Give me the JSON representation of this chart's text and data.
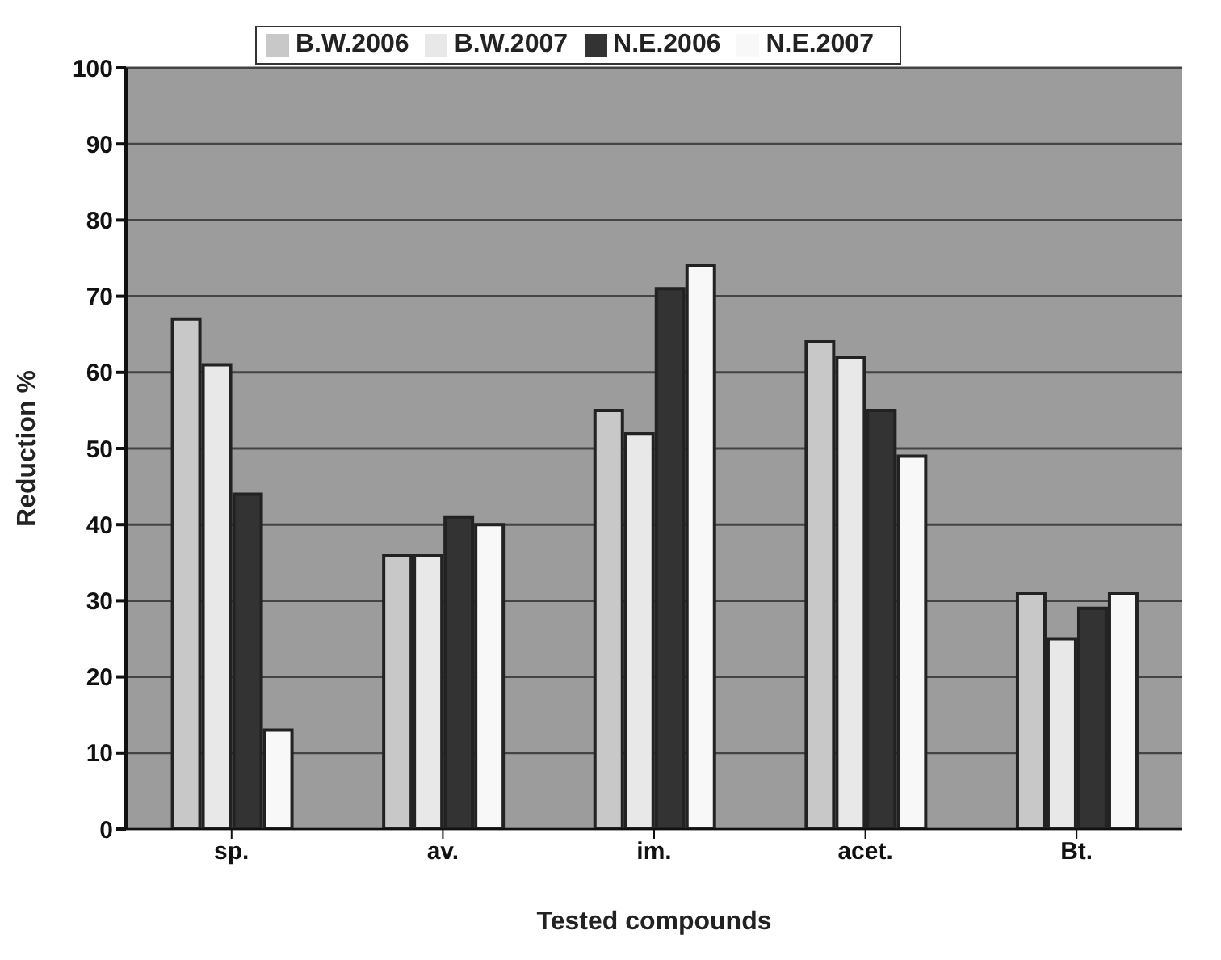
{
  "chart_data": {
    "type": "bar",
    "xlabel": "Tested compounds",
    "ylabel": "Reduction %",
    "categories": [
      "sp.",
      "av.",
      "im.",
      "acet.",
      "Bt."
    ],
    "series": [
      {
        "name": "B.W.2006",
        "color": "#c8c8c8",
        "values": [
          67,
          36,
          55,
          64,
          31
        ]
      },
      {
        "name": "B.W.2007",
        "color": "#e8e8e8",
        "values": [
          61,
          36,
          52,
          62,
          25
        ]
      },
      {
        "name": "N.E.2006",
        "color": "#333333",
        "values": [
          44,
          41,
          71,
          55,
          29
        ]
      },
      {
        "name": "N.E.2007",
        "color": "#f8f8f8",
        "values": [
          13,
          40,
          74,
          49,
          31
        ]
      }
    ],
    "ylim": [
      0,
      100
    ],
    "yticks": [
      0,
      10,
      20,
      30,
      40,
      50,
      60,
      70,
      80,
      90,
      100
    ],
    "grid": "y",
    "legend": "top"
  }
}
